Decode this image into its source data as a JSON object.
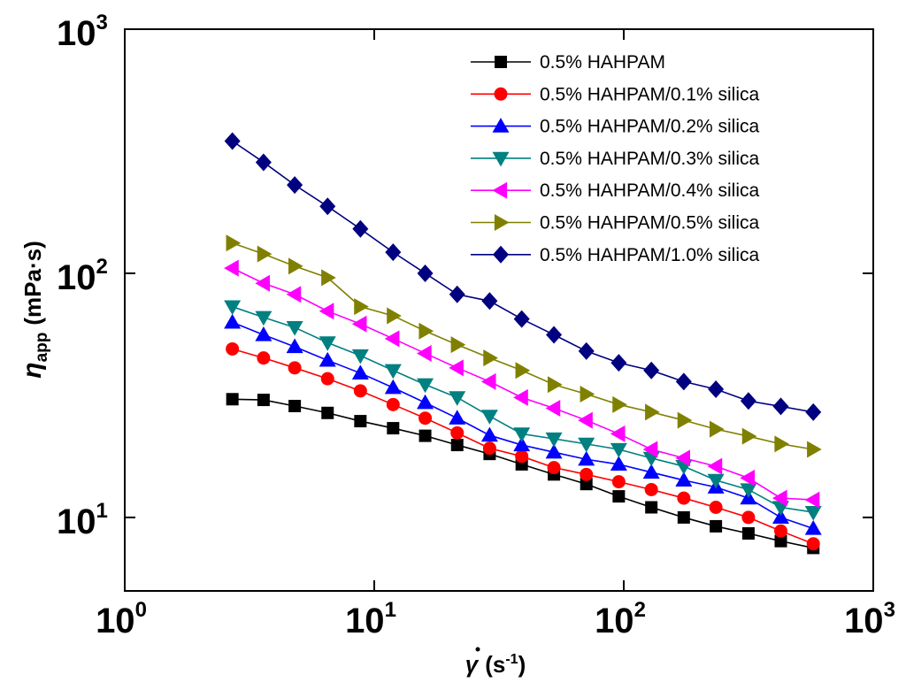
{
  "chart_data": {
    "type": "line",
    "xscale": "log",
    "yscale": "log",
    "xlim": [
      1,
      1000
    ],
    "ylim": [
      5,
      1000
    ],
    "x_ticks": [
      {
        "base": "10",
        "exp": "0"
      },
      {
        "base": "10",
        "exp": "1"
      },
      {
        "base": "10",
        "exp": "2"
      },
      {
        "base": "10",
        "exp": "3"
      }
    ],
    "y_ticks": [
      {
        "base": "10",
        "exp": "1"
      },
      {
        "base": "10",
        "exp": "2"
      },
      {
        "base": "10",
        "exp": "3"
      }
    ],
    "xlabel": {
      "symbol": "γ",
      "unit_open": "(s",
      "unit_exp": "-1",
      "unit_close": ")"
    },
    "ylabel": {
      "symbol": "η",
      "sub": "app",
      "unit": "(mPa·s)"
    },
    "legend_position": "top-right",
    "x": [
      2.7,
      3.6,
      4.8,
      6.5,
      8.8,
      11.9,
      16,
      21.5,
      29,
      39,
      52.5,
      70.8,
      95.5,
      129,
      174,
      234,
      316,
      426,
      575
    ],
    "series": [
      {
        "name": "0.5% HAHPAM",
        "color": "#000000",
        "marker": "square",
        "values": [
          30.5,
          30.3,
          28.6,
          26.8,
          24.8,
          23.2,
          21.6,
          19.8,
          18.2,
          16.5,
          15.0,
          13.7,
          12.2,
          11.0,
          10.0,
          9.2,
          8.6,
          8.0,
          7.5
        ]
      },
      {
        "name": "0.5% HAHPAM/0.1% silica",
        "color": "#ff0000",
        "marker": "circle",
        "values": [
          49,
          45,
          41,
          37,
          33,
          29,
          25.5,
          22.2,
          19.2,
          17.8,
          16.0,
          15.0,
          14.0,
          13.0,
          12.0,
          11.0,
          10.0,
          8.8,
          7.8
        ]
      },
      {
        "name": "0.5% HAHPAM/0.2% silica",
        "color": "#0000ff",
        "marker": "triangle-up",
        "values": [
          63,
          56,
          50,
          44,
          39,
          34,
          29.5,
          25.5,
          21.7,
          19.8,
          18.5,
          17.3,
          16.5,
          15.3,
          14.2,
          13.3,
          12.0,
          10.0,
          9.0
        ]
      },
      {
        "name": "0.5% HAHPAM/0.3% silica",
        "color": "#008080",
        "marker": "triangle-down",
        "values": [
          73,
          66,
          60,
          52,
          46,
          40,
          35,
          31,
          26,
          22,
          21,
          20,
          19,
          17.5,
          16.2,
          14.2,
          13,
          11,
          10.5
        ]
      },
      {
        "name": "0.5% HAHPAM/0.4% silica",
        "color": "#ff00ff",
        "marker": "triangle-left",
        "values": [
          105,
          91,
          82,
          70,
          62,
          54,
          47,
          41,
          36,
          31,
          28,
          25,
          22,
          19,
          17.5,
          16.2,
          14.5,
          12,
          11.8
        ]
      },
      {
        "name": "0.5% HAHPAM/0.5% silica",
        "color": "#808000",
        "marker": "triangle-right",
        "values": [
          133,
          120,
          107,
          96,
          73,
          67,
          58,
          51,
          45,
          40,
          35,
          32,
          29,
          27,
          25,
          23,
          21.5,
          20,
          19
        ]
      },
      {
        "name": "0.5% HAHPAM/1.0% silica",
        "color": "#000080",
        "marker": "diamond",
        "values": [
          348,
          285,
          230,
          188,
          152,
          122,
          100,
          82,
          77,
          65,
          56,
          48,
          43,
          40,
          36,
          33.5,
          30,
          28.5,
          27
        ]
      }
    ]
  }
}
